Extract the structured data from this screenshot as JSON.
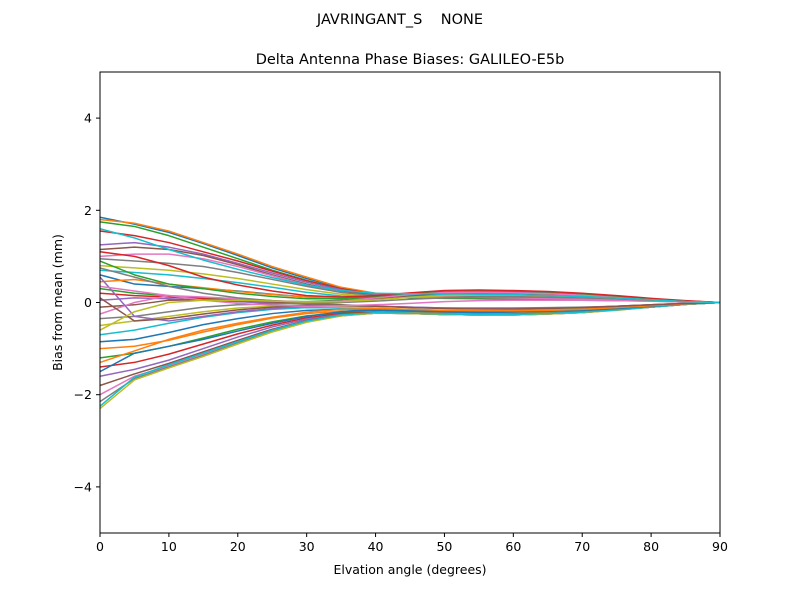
{
  "figure": {
    "suptitle": "JAVRINGANT_S    NONE"
  },
  "chart_data": {
    "type": "line",
    "title": "Delta Antenna Phase Biases: GALILEO-E5b",
    "xlabel": "Elvation angle (degrees)",
    "ylabel": "Bias from mean (mm)",
    "xlim": [
      0,
      90
    ],
    "ylim": [
      -5,
      5
    ],
    "xticks": [
      0,
      10,
      20,
      30,
      40,
      50,
      60,
      70,
      80,
      90
    ],
    "xtick_labels": [
      "0",
      "10",
      "20",
      "30",
      "40",
      "50",
      "60",
      "70",
      "80",
      "90"
    ],
    "yticks": [
      -4,
      -2,
      0,
      2,
      4
    ],
    "ytick_labels": [
      "−4",
      "−2",
      "0",
      "2",
      "4"
    ],
    "grid": false,
    "x": [
      0,
      5,
      10,
      15,
      20,
      25,
      30,
      35,
      40,
      45,
      50,
      55,
      60,
      65,
      70,
      75,
      80,
      85,
      90
    ],
    "colors": [
      "#1f77b4",
      "#ff7f0e",
      "#2ca02c",
      "#d62728",
      "#9467bd",
      "#8c564b",
      "#e377c2",
      "#7f7f7f",
      "#bcbd22",
      "#17becf"
    ],
    "series": [
      {
        "values": [
          1.85,
          1.7,
          1.52,
          1.28,
          1.02,
          0.75,
          0.52,
          0.32,
          0.18,
          0.12,
          0.1,
          0.09,
          0.08,
          0.07,
          0.06,
          0.05,
          0.04,
          0.02,
          0.0
        ]
      },
      {
        "values": [
          1.8,
          1.72,
          1.55,
          1.3,
          1.05,
          0.78,
          0.55,
          0.33,
          0.2,
          0.14,
          0.12,
          0.11,
          0.1,
          0.09,
          0.08,
          0.06,
          0.04,
          0.02,
          0.0
        ]
      },
      {
        "values": [
          1.75,
          1.65,
          1.45,
          1.2,
          0.95,
          0.7,
          0.48,
          0.3,
          0.16,
          0.1,
          0.09,
          0.08,
          0.07,
          0.06,
          0.05,
          0.04,
          0.03,
          0.01,
          0.0
        ]
      },
      {
        "values": [
          1.55,
          1.45,
          1.3,
          1.1,
          0.9,
          0.68,
          0.47,
          0.3,
          0.18,
          0.15,
          0.14,
          0.13,
          0.12,
          0.11,
          0.1,
          0.08,
          0.05,
          0.02,
          0.0
        ]
      },
      {
        "values": [
          1.25,
          1.3,
          1.2,
          1.05,
          0.85,
          0.64,
          0.44,
          0.28,
          0.17,
          0.14,
          0.13,
          0.12,
          0.11,
          0.1,
          0.09,
          0.07,
          0.05,
          0.02,
          0.0
        ]
      },
      {
        "values": [
          1.15,
          1.2,
          1.15,
          1.02,
          0.82,
          0.6,
          0.4,
          0.25,
          0.15,
          0.13,
          0.12,
          0.12,
          0.11,
          0.1,
          0.09,
          0.07,
          0.05,
          0.02,
          0.0
        ]
      },
      {
        "values": [
          1.0,
          1.05,
          1.05,
          0.95,
          0.78,
          0.58,
          0.38,
          0.22,
          0.14,
          0.12,
          0.11,
          0.11,
          0.1,
          0.09,
          0.08,
          0.06,
          0.04,
          0.02,
          0.0
        ]
      },
      {
        "values": [
          0.95,
          0.9,
          0.85,
          0.78,
          0.65,
          0.5,
          0.35,
          0.22,
          0.15,
          0.14,
          0.15,
          0.15,
          0.14,
          0.13,
          0.11,
          0.08,
          0.05,
          0.02,
          0.0
        ]
      },
      {
        "values": [
          0.8,
          0.75,
          0.7,
          0.62,
          0.52,
          0.4,
          0.28,
          0.18,
          0.13,
          0.14,
          0.16,
          0.17,
          0.16,
          0.15,
          0.12,
          0.09,
          0.05,
          0.02,
          0.0
        ]
      },
      {
        "values": [
          0.7,
          0.65,
          0.6,
          0.52,
          0.43,
          0.33,
          0.22,
          0.14,
          0.11,
          0.14,
          0.18,
          0.2,
          0.2,
          0.18,
          0.15,
          0.11,
          0.06,
          0.02,
          0.0
        ]
      },
      {
        "values": [
          0.6,
          0.4,
          0.35,
          0.3,
          0.25,
          0.18,
          0.12,
          0.1,
          0.12,
          0.18,
          0.22,
          0.22,
          0.21,
          0.19,
          0.16,
          0.12,
          0.07,
          0.03,
          0.0
        ]
      },
      {
        "values": [
          0.45,
          0.5,
          0.4,
          0.32,
          0.24,
          0.17,
          0.12,
          0.11,
          0.15,
          0.2,
          0.24,
          0.24,
          0.22,
          0.2,
          0.17,
          0.12,
          0.07,
          0.03,
          0.0
        ]
      },
      {
        "values": [
          0.3,
          0.2,
          0.15,
          0.1,
          0.06,
          0.03,
          0.02,
          0.05,
          0.12,
          0.19,
          0.25,
          0.26,
          0.24,
          0.22,
          0.18,
          0.13,
          0.08,
          0.03,
          0.0
        ]
      },
      {
        "values": [
          0.2,
          0.15,
          0.12,
          0.08,
          0.04,
          0.01,
          0.0,
          0.03,
          0.1,
          0.18,
          0.24,
          0.25,
          0.24,
          0.21,
          0.18,
          0.13,
          0.08,
          0.03,
          0.0
        ]
      },
      {
        "values": [
          0.05,
          0.1,
          0.08,
          0.05,
          0.02,
          -0.02,
          -0.03,
          0.0,
          0.08,
          0.16,
          0.22,
          0.23,
          0.22,
          0.2,
          0.17,
          0.12,
          0.07,
          0.03,
          0.0
        ]
      },
      {
        "values": [
          -0.1,
          -0.05,
          0.05,
          0.06,
          0.04,
          0.01,
          -0.02,
          0.02,
          0.08,
          0.15,
          0.2,
          0.21,
          0.2,
          0.18,
          0.15,
          0.11,
          0.07,
          0.03,
          0.0
        ]
      },
      {
        "values": [
          -0.25,
          0.0,
          0.15,
          0.12,
          0.08,
          0.04,
          0.01,
          0.03,
          0.1,
          0.17,
          0.22,
          0.22,
          0.21,
          0.19,
          0.16,
          0.12,
          0.07,
          0.03,
          0.0
        ]
      },
      {
        "values": [
          -0.35,
          -0.3,
          -0.2,
          -0.1,
          -0.05,
          -0.03,
          -0.02,
          -0.05,
          -0.08,
          -0.1,
          -0.12,
          -0.12,
          -0.12,
          -0.11,
          -0.1,
          -0.08,
          -0.05,
          -0.02,
          0.0
        ]
      },
      {
        "values": [
          -0.5,
          -0.4,
          -0.3,
          -0.2,
          -0.12,
          -0.08,
          -0.06,
          -0.08,
          -0.12,
          -0.15,
          -0.17,
          -0.18,
          -0.17,
          -0.16,
          -0.14,
          -0.1,
          -0.06,
          -0.03,
          0.0
        ]
      },
      {
        "values": [
          -0.7,
          -0.6,
          -0.45,
          -0.32,
          -0.22,
          -0.15,
          -0.11,
          -0.12,
          -0.15,
          -0.18,
          -0.2,
          -0.21,
          -0.2,
          -0.19,
          -0.16,
          -0.12,
          -0.07,
          -0.03,
          0.0
        ]
      },
      {
        "values": [
          -0.85,
          -0.8,
          -0.65,
          -0.48,
          -0.35,
          -0.24,
          -0.17,
          -0.15,
          -0.17,
          -0.2,
          -0.22,
          -0.23,
          -0.23,
          -0.21,
          -0.18,
          -0.13,
          -0.08,
          -0.03,
          0.0
        ]
      },
      {
        "values": [
          -1.0,
          -0.95,
          -0.82,
          -0.64,
          -0.48,
          -0.34,
          -0.24,
          -0.19,
          -0.2,
          -0.22,
          -0.24,
          -0.25,
          -0.24,
          -0.22,
          -0.19,
          -0.14,
          -0.08,
          -0.03,
          0.0
        ]
      },
      {
        "values": [
          -1.2,
          -1.1,
          -0.95,
          -0.77,
          -0.58,
          -0.42,
          -0.29,
          -0.22,
          -0.21,
          -0.23,
          -0.25,
          -0.26,
          -0.25,
          -0.23,
          -0.2,
          -0.15,
          -0.09,
          -0.04,
          0.0
        ]
      },
      {
        "values": [
          -1.4,
          -1.3,
          -1.12,
          -0.9,
          -0.68,
          -0.49,
          -0.33,
          -0.24,
          -0.22,
          -0.24,
          -0.26,
          -0.27,
          -0.26,
          -0.24,
          -0.21,
          -0.15,
          -0.09,
          -0.04,
          0.0
        ]
      },
      {
        "values": [
          -1.6,
          -1.45,
          -1.25,
          -1.0,
          -0.75,
          -0.53,
          -0.36,
          -0.26,
          -0.23,
          -0.24,
          -0.26,
          -0.27,
          -0.26,
          -0.24,
          -0.21,
          -0.16,
          -0.1,
          -0.04,
          0.0
        ]
      },
      {
        "values": [
          -1.8,
          -1.55,
          -1.32,
          -1.07,
          -0.82,
          -0.58,
          -0.39,
          -0.27,
          -0.23,
          -0.24,
          -0.26,
          -0.27,
          -0.27,
          -0.25,
          -0.22,
          -0.16,
          -0.1,
          -0.04,
          0.0
        ]
      },
      {
        "values": [
          -2.0,
          -1.6,
          -1.38,
          -1.12,
          -0.86,
          -0.61,
          -0.41,
          -0.28,
          -0.23,
          -0.24,
          -0.26,
          -0.27,
          -0.27,
          -0.25,
          -0.22,
          -0.16,
          -0.1,
          -0.04,
          0.0
        ]
      },
      {
        "values": [
          -2.15,
          -1.65,
          -1.4,
          -1.15,
          -0.88,
          -0.63,
          -0.42,
          -0.29,
          -0.23,
          -0.24,
          -0.26,
          -0.27,
          -0.27,
          -0.25,
          -0.22,
          -0.16,
          -0.1,
          -0.04,
          0.0
        ]
      },
      {
        "values": [
          -2.3,
          -1.68,
          -1.42,
          -1.17,
          -0.9,
          -0.64,
          -0.43,
          -0.29,
          -0.23,
          -0.24,
          -0.26,
          -0.27,
          -0.27,
          -0.25,
          -0.22,
          -0.17,
          -0.1,
          -0.04,
          0.0
        ]
      },
      {
        "values": [
          -2.25,
          -1.62,
          -1.35,
          -1.1,
          -0.85,
          -0.6,
          -0.4,
          -0.27,
          -0.22,
          -0.23,
          -0.25,
          -0.26,
          -0.26,
          -0.24,
          -0.21,
          -0.16,
          -0.1,
          -0.04,
          0.0
        ]
      },
      {
        "values": [
          -1.5,
          -1.1,
          -0.95,
          -0.8,
          -0.62,
          -0.45,
          -0.3,
          -0.2,
          -0.16,
          -0.17,
          -0.19,
          -0.2,
          -0.2,
          -0.19,
          -0.17,
          -0.13,
          -0.08,
          -0.03,
          0.0
        ]
      },
      {
        "values": [
          -1.3,
          -1.05,
          -0.8,
          -0.6,
          -0.45,
          -0.32,
          -0.21,
          -0.15,
          -0.13,
          -0.15,
          -0.17,
          -0.18,
          -0.18,
          -0.17,
          -0.15,
          -0.11,
          -0.07,
          -0.03,
          0.0
        ]
      },
      {
        "values": [
          0.9,
          0.6,
          0.4,
          0.3,
          0.2,
          0.13,
          0.08,
          0.08,
          0.14,
          0.2,
          0.25,
          0.26,
          0.25,
          0.23,
          0.19,
          0.14,
          0.08,
          0.03,
          0.0
        ]
      },
      {
        "values": [
          1.1,
          1.0,
          0.8,
          0.55,
          0.38,
          0.25,
          0.15,
          0.12,
          0.15,
          0.21,
          0.26,
          0.27,
          0.26,
          0.24,
          0.2,
          0.15,
          0.09,
          0.04,
          0.0
        ]
      },
      {
        "values": [
          0.55,
          -0.3,
          -0.4,
          -0.3,
          -0.2,
          -0.13,
          -0.08,
          -0.07,
          -0.08,
          -0.1,
          -0.12,
          -0.13,
          -0.13,
          -0.12,
          -0.11,
          -0.08,
          -0.05,
          -0.02,
          0.0
        ]
      },
      {
        "values": [
          0.1,
          -0.4,
          -0.35,
          -0.25,
          -0.16,
          -0.1,
          -0.06,
          -0.06,
          -0.08,
          -0.11,
          -0.13,
          -0.14,
          -0.14,
          -0.13,
          -0.11,
          -0.08,
          -0.05,
          -0.02,
          0.0
        ]
      },
      {
        "values": [
          0.35,
          0.25,
          0.15,
          0.05,
          -0.02,
          -0.06,
          -0.08,
          -0.07,
          -0.05,
          -0.02,
          0.02,
          0.04,
          0.05,
          0.05,
          0.05,
          0.04,
          0.03,
          0.01,
          0.0
        ]
      },
      {
        "values": [
          0.75,
          0.55,
          0.35,
          0.2,
          0.1,
          0.04,
          0.0,
          0.0,
          0.03,
          0.07,
          0.1,
          0.12,
          0.12,
          0.11,
          0.1,
          0.08,
          0.05,
          0.02,
          0.0
        ]
      },
      {
        "values": [
          -0.6,
          -0.2,
          0.0,
          0.05,
          0.05,
          0.03,
          0.01,
          0.02,
          0.06,
          0.11,
          0.15,
          0.16,
          0.16,
          0.15,
          0.13,
          0.1,
          0.06,
          0.02,
          0.0
        ]
      },
      {
        "values": [
          1.6,
          1.4,
          1.15,
          0.92,
          0.72,
          0.54,
          0.38,
          0.26,
          0.2,
          0.19,
          0.19,
          0.18,
          0.17,
          0.15,
          0.13,
          0.1,
          0.06,
          0.02,
          0.0
        ]
      }
    ]
  }
}
